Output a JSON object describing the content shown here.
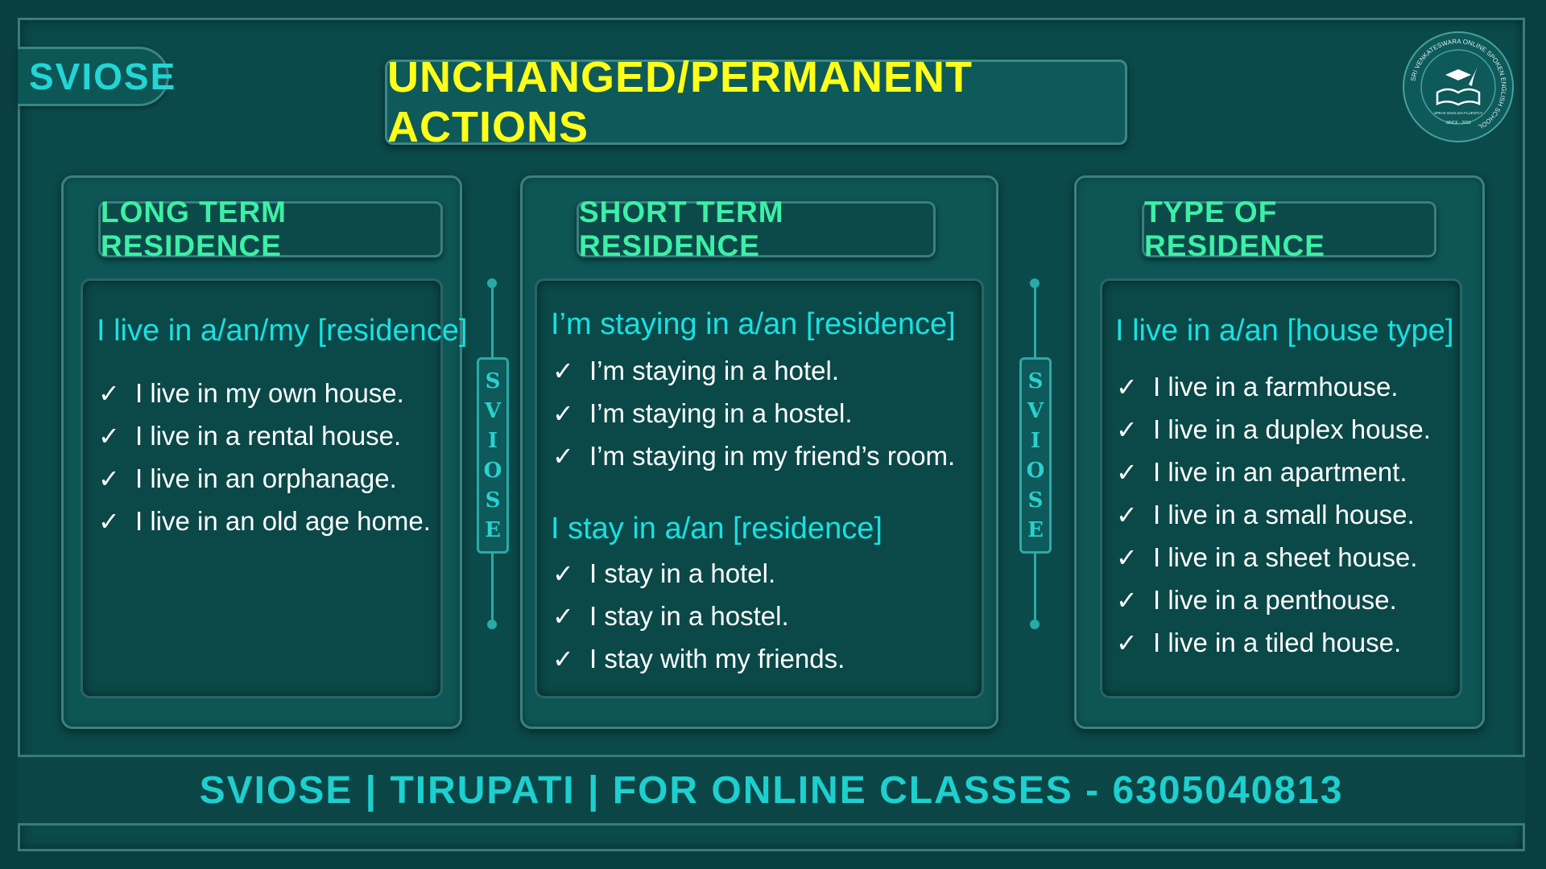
{
  "brand": "SVIOSE",
  "title": "UNCHANGED/PERMANENT ACTIONS",
  "logo": {
    "ring_text": "SRI VENKATESWARA ONLINE SPOKEN ENGLISH SCHOOL",
    "ribbon": "SPEAK ENGLISH FLUENTLY",
    "since": "SINCE - 2023"
  },
  "panels": {
    "long": {
      "head": "LONG TERM RESIDENCE",
      "heading": "I live in a/an/my [residence]",
      "items": [
        "I live in my own house.",
        "I live in a rental house.",
        "I live in an orphanage.",
        "I live in an old age home."
      ]
    },
    "short": {
      "head": "SHORT TERM RESIDENCE",
      "heading1": "I’m staying in a/an [residence]",
      "items1": [
        "I’m staying in a hotel.",
        "I’m staying in a hostel.",
        "I’m staying in my friend’s room."
      ],
      "heading2": "I stay in a/an [residence]",
      "items2": [
        "I stay in a hotel.",
        "I stay in a hostel.",
        "I stay with my friends."
      ]
    },
    "type": {
      "head": "TYPE OF RESIDENCE",
      "heading": "I live in a/an [house type]",
      "items": [
        "I live in a farmhouse.",
        "I live in a duplex house.",
        "I live in an apartment.",
        "I live in a small house.",
        "I live in a sheet house.",
        "I live in a penthouse.",
        "I live in a tiled house."
      ]
    }
  },
  "divider_letters": [
    "S",
    "V",
    "I",
    "O",
    "S",
    "E"
  ],
  "check_symbol": "✓",
  "footer": "SVIOSE | TIRUPATI | FOR ONLINE CLASSES - 6305040813"
}
